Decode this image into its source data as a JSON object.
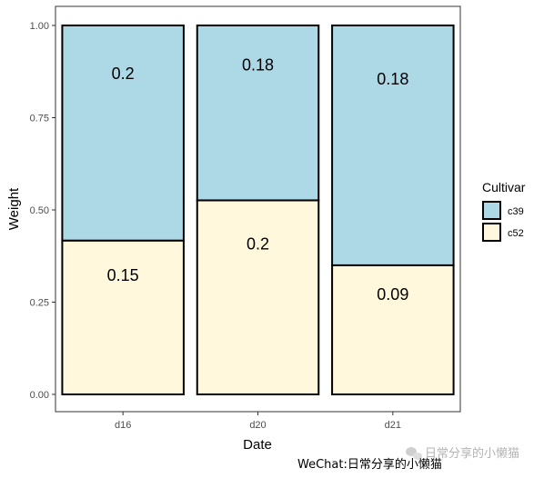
{
  "chart_data": {
    "type": "bar",
    "stacked": true,
    "categories": [
      "d16",
      "d20",
      "d21"
    ],
    "series": [
      {
        "name": "c52",
        "values": [
          0.417,
          0.526,
          0.35
        ],
        "labels": [
          "0.15",
          "0.2",
          "0.09"
        ],
        "color": "#fff8dc"
      },
      {
        "name": "c39",
        "values": [
          0.583,
          0.474,
          0.65
        ],
        "labels": [
          "0.2",
          "0.18",
          "0.18"
        ],
        "color": "#add8e6"
      }
    ],
    "xlabel": "Date",
    "ylabel": "Weight",
    "ylim": [
      0,
      1
    ],
    "yticks": [
      0,
      0.25,
      0.5,
      0.75,
      1
    ],
    "ytick_labels": [
      "0.00",
      "0.25",
      "0.50",
      "0.75",
      "1.00"
    ],
    "legend": {
      "title": "Cultivar",
      "position": "right",
      "entries": [
        "c39",
        "c52"
      ]
    },
    "grid": false
  },
  "watermark": {
    "text": "WeChat:日常分享的小懒猫",
    "ghost_text": "日常分享的小懒猫"
  }
}
